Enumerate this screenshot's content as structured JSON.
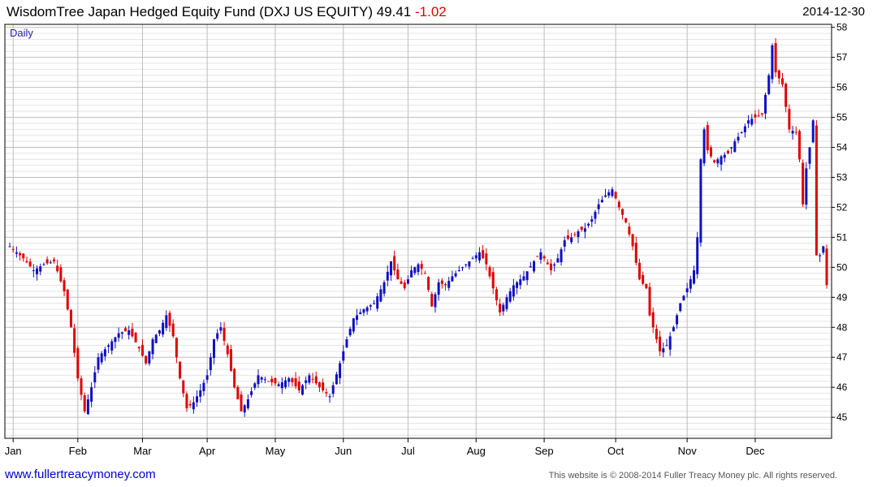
{
  "header": {
    "title": "WisdomTree Japan Hedged Equity Fund (DXJ US EQUITY)",
    "last_price": "49.41",
    "change": "-1.02",
    "date": "2014-12-30"
  },
  "footer": {
    "website": "www.fullertreacymoney.com",
    "copyright": "This website is © 2008-2014 Fuller Treacy Money plc. All rights reserved."
  },
  "colors": {
    "up": "#1010c0",
    "down": "#e00000",
    "grid_major": "#bdbdbd",
    "grid_minor": "#e4e4e4",
    "frame": "#000000",
    "label_blue": "#2222aa"
  },
  "chart_data": {
    "type": "candlestick",
    "period_label": "Daily",
    "x_labels": [
      "Jan",
      "Feb",
      "Mar",
      "Apr",
      "May",
      "Jun",
      "Jul",
      "Aug",
      "Sep",
      "Oct",
      "Nov",
      "Dec"
    ],
    "x_label_index": [
      1,
      20,
      39,
      58,
      78,
      98,
      117,
      137,
      157,
      178,
      199,
      219
    ],
    "n_sessions": 241,
    "y_ticks": [
      45,
      46,
      47,
      48,
      49,
      50,
      51,
      52,
      53,
      54,
      55,
      56,
      57,
      58
    ],
    "ylim": [
      44.3,
      58.1
    ],
    "y_axis_side": "right",
    "close_path": [
      [
        0,
        50.7
      ],
      [
        4,
        50.3
      ],
      [
        7,
        49.9
      ],
      [
        10,
        50.1
      ],
      [
        13,
        50.2
      ],
      [
        16,
        49.2
      ],
      [
        18,
        48.0
      ],
      [
        20,
        46.3
      ],
      [
        22,
        45.2
      ],
      [
        24,
        46.0
      ],
      [
        26,
        47.0
      ],
      [
        29,
        47.4
      ],
      [
        32,
        47.8
      ],
      [
        35,
        47.9
      ],
      [
        38,
        47.3
      ],
      [
        40,
        46.8
      ],
      [
        42,
        47.6
      ],
      [
        44,
        47.9
      ],
      [
        46,
        48.4
      ],
      [
        48,
        47.7
      ],
      [
        50,
        46.3
      ],
      [
        52,
        45.3
      ],
      [
        54,
        45.5
      ],
      [
        56,
        45.9
      ],
      [
        58,
        46.4
      ],
      [
        60,
        47.6
      ],
      [
        62,
        48.0
      ],
      [
        64,
        47.1
      ],
      [
        66,
        46.0
      ],
      [
        68,
        45.2
      ],
      [
        70,
        45.6
      ],
      [
        73,
        46.4
      ],
      [
        76,
        46.2
      ],
      [
        79,
        46.1
      ],
      [
        82,
        46.3
      ],
      [
        85,
        45.9
      ],
      [
        88,
        46.4
      ],
      [
        91,
        46.0
      ],
      [
        94,
        45.7
      ],
      [
        97,
        46.8
      ],
      [
        99,
        47.6
      ],
      [
        101,
        48.3
      ],
      [
        104,
        48.6
      ],
      [
        107,
        48.8
      ],
      [
        110,
        49.5
      ],
      [
        112,
        50.2
      ],
      [
        114,
        49.6
      ],
      [
        116,
        49.3
      ],
      [
        118,
        49.9
      ],
      [
        120,
        50.1
      ],
      [
        122,
        49.8
      ],
      [
        124,
        48.7
      ],
      [
        126,
        49.5
      ],
      [
        128,
        49.4
      ],
      [
        130,
        49.7
      ],
      [
        133,
        50.0
      ],
      [
        136,
        50.3
      ],
      [
        138,
        50.5
      ],
      [
        140,
        50.1
      ],
      [
        142,
        49.3
      ],
      [
        144,
        48.5
      ],
      [
        146,
        49.0
      ],
      [
        148,
        49.4
      ],
      [
        151,
        49.7
      ],
      [
        154,
        50.2
      ],
      [
        156,
        50.5
      ],
      [
        159,
        49.9
      ],
      [
        161,
        50.3
      ],
      [
        163,
        50.9
      ],
      [
        165,
        51.0
      ],
      [
        167,
        51.2
      ],
      [
        169,
        51.3
      ],
      [
        171,
        51.6
      ],
      [
        173,
        52.1
      ],
      [
        175,
        52.4
      ],
      [
        177,
        52.6
      ],
      [
        179,
        52.0
      ],
      [
        181,
        51.5
      ],
      [
        183,
        50.7
      ],
      [
        185,
        49.6
      ],
      [
        187,
        49.3
      ],
      [
        188,
        48.4
      ],
      [
        189,
        48.0
      ],
      [
        191,
        47.2
      ],
      [
        193,
        47.4
      ],
      [
        195,
        48.0
      ],
      [
        197,
        48.8
      ],
      [
        199,
        49.3
      ],
      [
        201,
        49.9
      ],
      [
        202,
        51.0
      ],
      [
        203,
        53.6
      ],
      [
        204,
        54.6
      ],
      [
        205,
        53.9
      ],
      [
        207,
        53.5
      ],
      [
        209,
        53.7
      ],
      [
        211,
        53.8
      ],
      [
        213,
        54.2
      ],
      [
        215,
        54.5
      ],
      [
        217,
        54.9
      ],
      [
        219,
        55.0
      ],
      [
        221,
        55.1
      ],
      [
        223,
        56.4
      ],
      [
        224,
        57.4
      ],
      [
        225,
        56.5
      ],
      [
        227,
        56.1
      ],
      [
        229,
        54.6
      ],
      [
        231,
        54.5
      ],
      [
        232,
        53.6
      ],
      [
        233,
        52.1
      ],
      [
        234,
        53.3
      ],
      [
        235,
        54.0
      ],
      [
        236,
        54.9
      ],
      [
        237,
        50.4
      ],
      [
        238,
        50.4
      ],
      [
        239,
        50.7
      ],
      [
        240,
        49.41
      ]
    ]
  }
}
